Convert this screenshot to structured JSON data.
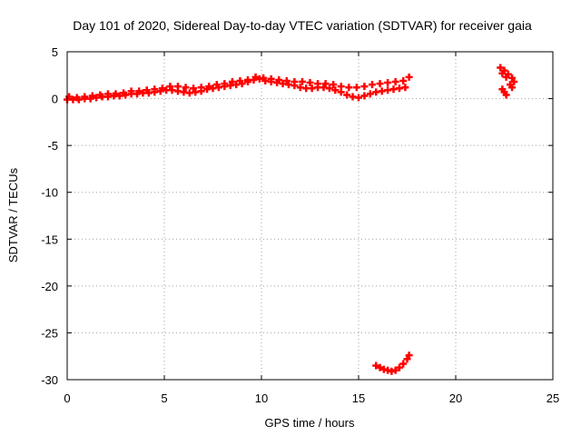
{
  "chart_data": {
    "type": "scatter",
    "title": "Day 101 of 2020, Sidereal Day-to-day VTEC variation (SDTVAR) for receiver gaia",
    "xlabel": "GPS time / hours",
    "ylabel": "SDTVAR / TECUs",
    "xlim": [
      0,
      25
    ],
    "ylim": [
      -30,
      5
    ],
    "xticks": [
      0,
      5,
      10,
      15,
      20,
      25
    ],
    "yticks": [
      -30,
      -25,
      -20,
      -15,
      -10,
      -5,
      0,
      5
    ],
    "grid": true,
    "marker": "plus",
    "colors": {
      "series": "#ff0000",
      "grid": "#a0a0a0",
      "frame": "#000000"
    },
    "series": [
      {
        "name": "main-band-lower",
        "points": [
          [
            0.0,
            -0.1
          ],
          [
            0.3,
            -0.1
          ],
          [
            0.6,
            -0.1
          ],
          [
            0.9,
            0.0
          ],
          [
            1.2,
            0.0
          ],
          [
            1.5,
            0.1
          ],
          [
            1.8,
            0.2
          ],
          [
            2.1,
            0.2
          ],
          [
            2.4,
            0.3
          ],
          [
            2.7,
            0.3
          ],
          [
            3.0,
            0.4
          ],
          [
            3.3,
            0.5
          ],
          [
            3.6,
            0.5
          ],
          [
            3.9,
            0.6
          ],
          [
            4.2,
            0.6
          ],
          [
            4.5,
            0.7
          ],
          [
            4.8,
            0.8
          ],
          [
            5.1,
            0.9
          ],
          [
            5.4,
            0.9
          ],
          [
            5.7,
            0.8
          ],
          [
            6.0,
            0.7
          ],
          [
            6.3,
            0.6
          ],
          [
            6.6,
            0.7
          ],
          [
            6.9,
            0.8
          ],
          [
            7.2,
            1.0
          ],
          [
            7.5,
            1.1
          ],
          [
            7.8,
            1.2
          ],
          [
            8.1,
            1.3
          ],
          [
            8.4,
            1.4
          ],
          [
            8.7,
            1.5
          ],
          [
            9.0,
            1.6
          ],
          [
            9.3,
            1.8
          ],
          [
            9.6,
            2.0
          ],
          [
            9.9,
            2.1
          ],
          [
            10.2,
            1.9
          ],
          [
            10.5,
            1.8
          ],
          [
            10.8,
            1.7
          ],
          [
            11.1,
            1.6
          ],
          [
            11.4,
            1.5
          ],
          [
            11.7,
            1.4
          ],
          [
            12.0,
            1.2
          ],
          [
            12.3,
            1.1
          ],
          [
            12.6,
            1.1
          ],
          [
            12.9,
            1.2
          ],
          [
            13.2,
            1.2
          ],
          [
            13.5,
            1.1
          ],
          [
            13.8,
            0.9
          ],
          [
            14.1,
            0.7
          ],
          [
            14.4,
            0.4
          ],
          [
            14.7,
            0.2
          ],
          [
            15.0,
            0.1
          ],
          [
            15.3,
            0.3
          ],
          [
            15.6,
            0.5
          ],
          [
            15.9,
            0.7
          ],
          [
            16.2,
            0.8
          ],
          [
            16.5,
            0.9
          ],
          [
            16.8,
            1.0
          ],
          [
            17.1,
            1.1
          ],
          [
            17.4,
            1.2
          ]
        ]
      },
      {
        "name": "main-band-upper",
        "points": [
          [
            0.1,
            0.2
          ],
          [
            0.5,
            0.1
          ],
          [
            0.9,
            0.2
          ],
          [
            1.3,
            0.3
          ],
          [
            1.7,
            0.4
          ],
          [
            2.1,
            0.5
          ],
          [
            2.5,
            0.5
          ],
          [
            2.9,
            0.6
          ],
          [
            3.3,
            0.8
          ],
          [
            3.7,
            0.8
          ],
          [
            4.1,
            0.9
          ],
          [
            4.5,
            1.0
          ],
          [
            4.9,
            1.1
          ],
          [
            5.3,
            1.3
          ],
          [
            5.7,
            1.3
          ],
          [
            6.1,
            1.2
          ],
          [
            6.5,
            1.1
          ],
          [
            6.9,
            1.2
          ],
          [
            7.3,
            1.3
          ],
          [
            7.7,
            1.5
          ],
          [
            8.1,
            1.6
          ],
          [
            8.5,
            1.8
          ],
          [
            8.9,
            1.9
          ],
          [
            9.3,
            2.0
          ],
          [
            9.7,
            2.3
          ],
          [
            10.1,
            2.2
          ],
          [
            10.5,
            2.1
          ],
          [
            10.9,
            2.0
          ],
          [
            11.3,
            1.9
          ],
          [
            11.7,
            1.8
          ],
          [
            12.1,
            1.8
          ],
          [
            12.5,
            1.7
          ],
          [
            12.9,
            1.6
          ],
          [
            13.3,
            1.6
          ],
          [
            13.7,
            1.5
          ],
          [
            14.1,
            1.3
          ],
          [
            14.5,
            1.2
          ],
          [
            14.9,
            1.2
          ],
          [
            15.3,
            1.3
          ],
          [
            15.7,
            1.5
          ],
          [
            16.1,
            1.6
          ],
          [
            16.5,
            1.7
          ],
          [
            16.9,
            1.8
          ],
          [
            17.3,
            1.9
          ],
          [
            17.6,
            2.3
          ]
        ]
      },
      {
        "name": "evening-arc",
        "points": [
          [
            15.9,
            -28.5
          ],
          [
            16.1,
            -28.7
          ],
          [
            16.3,
            -28.9
          ],
          [
            16.5,
            -29.0
          ],
          [
            16.7,
            -29.1
          ],
          [
            16.9,
            -29.0
          ],
          [
            17.1,
            -28.7
          ],
          [
            17.3,
            -28.3
          ],
          [
            17.5,
            -27.8
          ],
          [
            17.6,
            -27.4
          ]
        ]
      },
      {
        "name": "late-upper",
        "points": [
          [
            22.3,
            3.3
          ],
          [
            22.5,
            3.0
          ],
          [
            22.7,
            2.6
          ],
          [
            22.9,
            2.2
          ],
          [
            23.0,
            1.8
          ],
          [
            22.4,
            2.7
          ],
          [
            22.6,
            2.3
          ],
          [
            22.8,
            1.5
          ],
          [
            22.9,
            1.2
          ]
        ]
      },
      {
        "name": "late-lower",
        "points": [
          [
            22.4,
            1.0
          ],
          [
            22.5,
            0.7
          ],
          [
            22.6,
            0.4
          ]
        ]
      }
    ]
  }
}
